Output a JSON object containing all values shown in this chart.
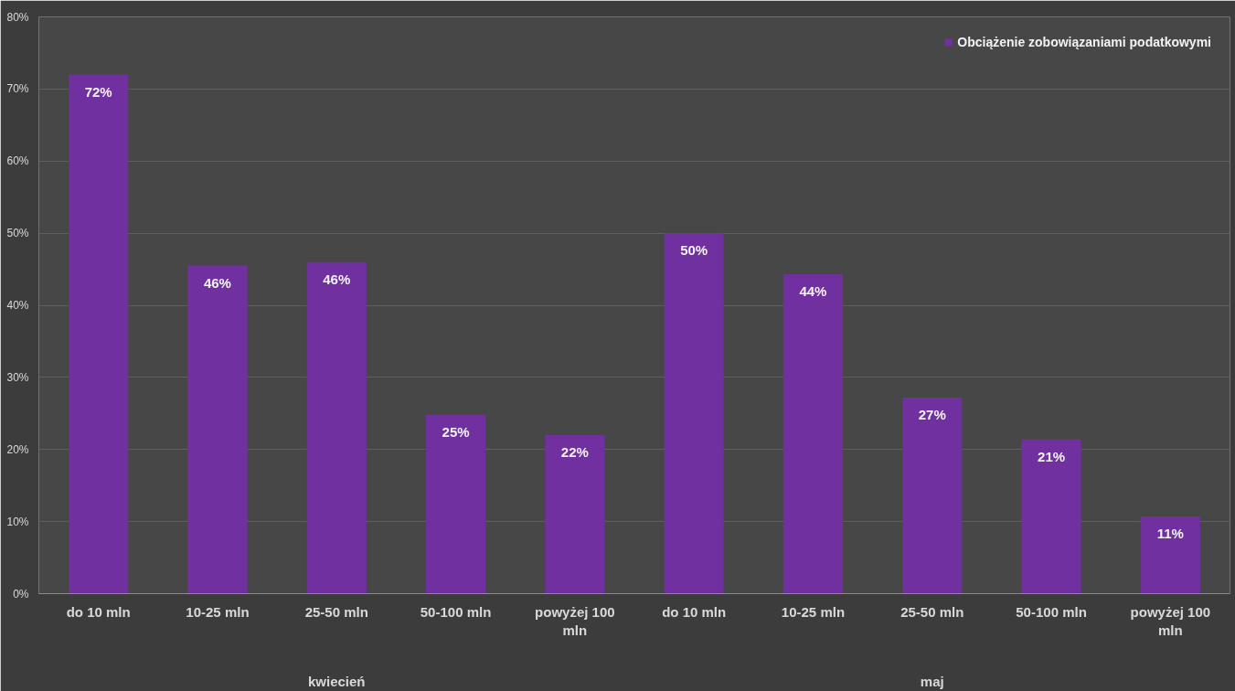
{
  "chart_data": {
    "type": "bar",
    "categories": [
      "do 10 mln",
      "10-25 mln",
      "25-50 mln",
      "50-100 mln",
      "powyżej 100 mln",
      "do 10 mln",
      "10-25 mln",
      "25-50 mln",
      "50-100 mln",
      "powyżej 100 mln"
    ],
    "series": [
      {
        "name": "Obciążenie zobowiązaniami podatkowymi",
        "color": "#7030a0",
        "values": [
          72,
          45.5,
          46,
          24.8,
          22,
          50,
          44.3,
          27.2,
          21.4,
          10.7
        ],
        "value_labels": [
          "72%",
          "46%",
          "46%",
          "25%",
          "22%",
          "50%",
          "44%",
          "27%",
          "21%",
          "11%"
        ]
      }
    ],
    "annotations": [
      "kwiecień",
      "maj"
    ],
    "ylim": [
      0,
      80
    ],
    "yticks": [
      {
        "value": 0,
        "label": "0%"
      },
      {
        "value": 10,
        "label": "10%"
      },
      {
        "value": 20,
        "label": "20%"
      },
      {
        "value": 30,
        "label": "30%"
      },
      {
        "value": 40,
        "label": "40%"
      },
      {
        "value": 50,
        "label": "50%"
      },
      {
        "value": 60,
        "label": "60%"
      },
      {
        "value": 70,
        "label": "70%"
      },
      {
        "value": 80,
        "label": "80%"
      }
    ],
    "grid": "y",
    "legend": "top right"
  }
}
